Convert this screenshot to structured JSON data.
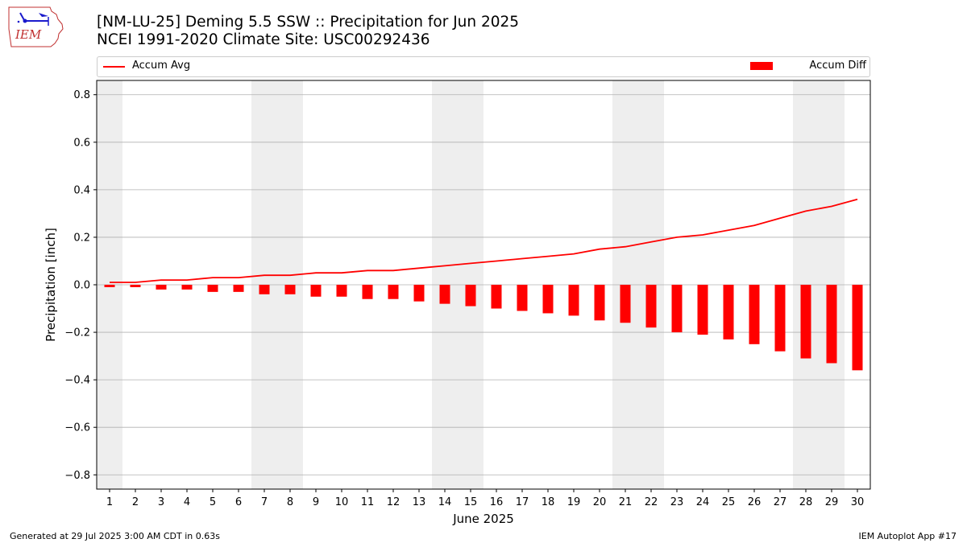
{
  "header": {
    "logo_text": "IEM",
    "title_line1": "[NM-LU-25] Deming 5.5 SSW :: Precipitation for Jun 2025",
    "title_line2": "NCEI 1991-2020 Climate Site: USC00292436"
  },
  "legend": {
    "avg_label": "Accum Avg",
    "diff_label": "Accum Diff"
  },
  "footer": {
    "left": "Generated at 29 Jul 2025 3:00 AM CDT in 0.63s",
    "right": "IEM Autoplot App #17"
  },
  "chart_data": {
    "type": "bar",
    "xlabel": "June 2025",
    "ylabel": "Precipitation [inch]",
    "ylim": [
      -0.86,
      0.86
    ],
    "yticks": [
      -0.8,
      -0.6,
      -0.4,
      -0.2,
      0.0,
      0.2,
      0.4,
      0.6,
      0.8
    ],
    "grid": "horizontal",
    "legend_position": "top",
    "categories": [
      "1",
      "2",
      "3",
      "4",
      "5",
      "6",
      "7",
      "8",
      "9",
      "10",
      "11",
      "12",
      "13",
      "14",
      "15",
      "16",
      "17",
      "18",
      "19",
      "20",
      "21",
      "22",
      "23",
      "24",
      "25",
      "26",
      "27",
      "28",
      "29",
      "30"
    ],
    "weekend_shaded_days": [
      1,
      7,
      8,
      14,
      15,
      21,
      22,
      28,
      29
    ],
    "series": [
      {
        "name": "Accum Diff",
        "kind": "bar",
        "color": "#ff0000",
        "values": [
          -0.01,
          -0.01,
          -0.02,
          -0.02,
          -0.03,
          -0.03,
          -0.04,
          -0.04,
          -0.05,
          -0.05,
          -0.06,
          -0.06,
          -0.07,
          -0.08,
          -0.09,
          -0.1,
          -0.11,
          -0.12,
          -0.13,
          -0.15,
          -0.16,
          -0.18,
          -0.2,
          -0.21,
          -0.23,
          -0.25,
          -0.28,
          -0.31,
          -0.33,
          -0.36
        ]
      },
      {
        "name": "Accum Avg",
        "kind": "line",
        "color": "#ff0000",
        "values": [
          0.01,
          0.01,
          0.02,
          0.02,
          0.03,
          0.03,
          0.04,
          0.04,
          0.05,
          0.05,
          0.06,
          0.06,
          0.07,
          0.08,
          0.09,
          0.1,
          0.11,
          0.12,
          0.13,
          0.15,
          0.16,
          0.18,
          0.2,
          0.21,
          0.23,
          0.25,
          0.28,
          0.31,
          0.33,
          0.36
        ]
      }
    ]
  }
}
